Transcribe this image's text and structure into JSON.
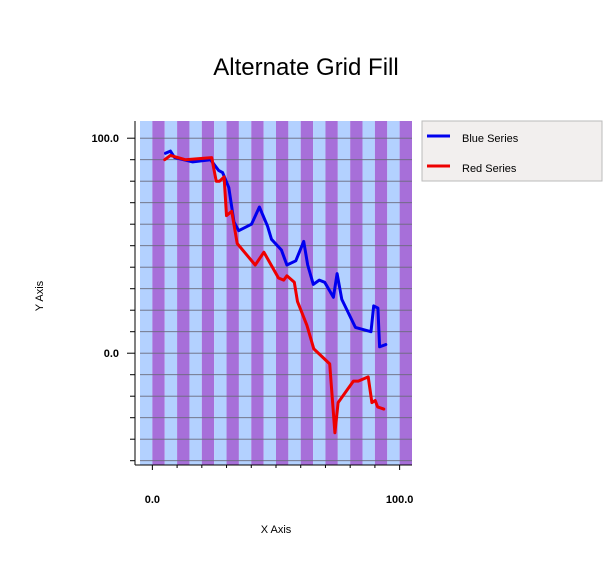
{
  "chart_data": {
    "type": "line",
    "title": "Alternate Grid Fill",
    "xlabel": "X Axis",
    "ylabel": "Y Axis",
    "xlim": [
      -5,
      105
    ],
    "ylim": [
      -52,
      108
    ],
    "x_ticks": [
      0,
      100
    ],
    "x_tick_labels": [
      "0.0",
      "100.0"
    ],
    "y_ticks": [
      0,
      100
    ],
    "y_tick_labels": [
      "0.0",
      "100.0"
    ],
    "grid_fill": {
      "orientation": "vertical bands",
      "colors": [
        "#b3d1ff",
        "#a76fd9"
      ],
      "band_width": 10
    },
    "legend_position": "top-right, outside plot",
    "series": [
      {
        "name": "Blue Series",
        "color": "#0000ee",
        "x": [
          5.3,
          7.3,
          9.0,
          16.3,
          23.5,
          26.8,
          28.4,
          30.9,
          33.0,
          34.9,
          40.1,
          43.3,
          46.6,
          48.2,
          52.2,
          54.4,
          58.0,
          61.2,
          62.8,
          65.1,
          67.5,
          69.7,
          73.2,
          74.7,
          76.6,
          82.1,
          88.4,
          89.5,
          91.2,
          91.9,
          94.4
        ],
        "y": [
          93,
          94,
          91,
          89,
          90,
          85,
          84,
          77,
          61,
          57,
          60,
          68,
          59,
          53,
          48,
          41,
          43,
          52,
          41,
          32,
          34,
          33,
          26,
          37,
          25,
          12,
          10,
          22,
          21,
          3,
          4
        ]
      },
      {
        "name": "Red Series",
        "color": "#ee0000",
        "x": [
          5.0,
          7.3,
          13.3,
          24.0,
          25.8,
          27.2,
          29.0,
          30.0,
          32.1,
          34.3,
          41.6,
          45.1,
          51.0,
          53.1,
          54.4,
          57.4,
          58.7,
          62.5,
          65.3,
          71.7,
          73.8,
          75.1,
          81.3,
          83.3,
          87.3,
          88.8,
          90.1,
          91.1,
          93.6
        ],
        "y": [
          90,
          92,
          90,
          91,
          80,
          80,
          82,
          64,
          66,
          51,
          41,
          47,
          35,
          34,
          36,
          33,
          24,
          13,
          2,
          -5,
          -37,
          -23,
          -13,
          -13,
          -11,
          -23,
          -22,
          -25,
          -26
        ]
      }
    ]
  }
}
